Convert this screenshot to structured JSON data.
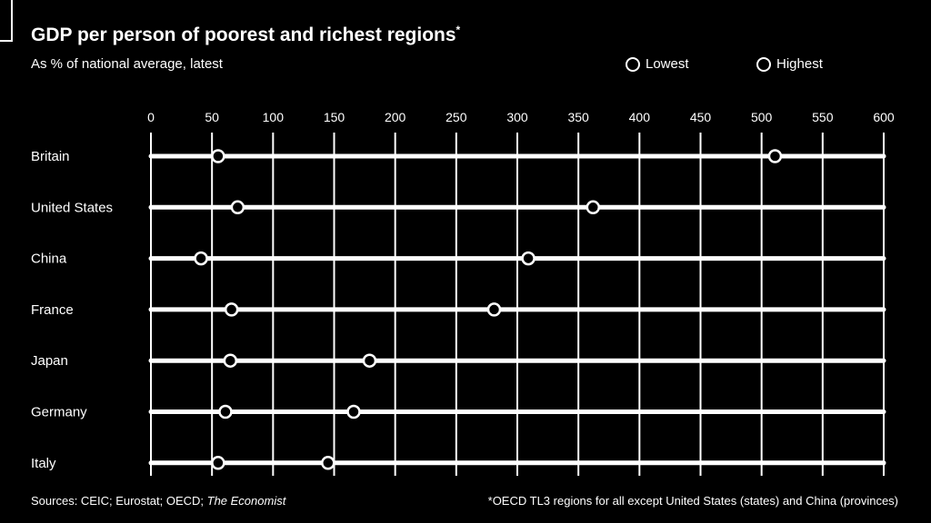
{
  "chart_data": {
    "type": "dot-range",
    "title": "GDP per person of poorest and richest regions",
    "title_marker": "*",
    "subtitle": "As % of national average, latest",
    "xlim": [
      0,
      600
    ],
    "ticks": [
      0,
      50,
      100,
      150,
      200,
      250,
      300,
      350,
      400,
      450,
      500,
      550,
      600
    ],
    "legend": {
      "placement": "top-right",
      "lowest_label": "Lowest",
      "highest_label": "Highest"
    },
    "categories": [
      "Britain",
      "United States",
      "China",
      "France",
      "Japan",
      "Germany",
      "Italy"
    ],
    "series": [
      {
        "name": "Lowest",
        "values": [
          55,
          71,
          41,
          66,
          65,
          61,
          55
        ]
      },
      {
        "name": "Highest",
        "values": [
          511,
          362,
          309,
          281,
          179,
          166,
          145
        ]
      }
    ]
  },
  "footer": {
    "sources_label": "Sources: CEIC; Eurostat; OECD; ",
    "sources_italic": "The Economist",
    "footnote": "*OECD TL3 regions for all except United States (states) and China (provinces)"
  },
  "colors": {
    "background": "#000000",
    "foreground": "#ffffff"
  }
}
